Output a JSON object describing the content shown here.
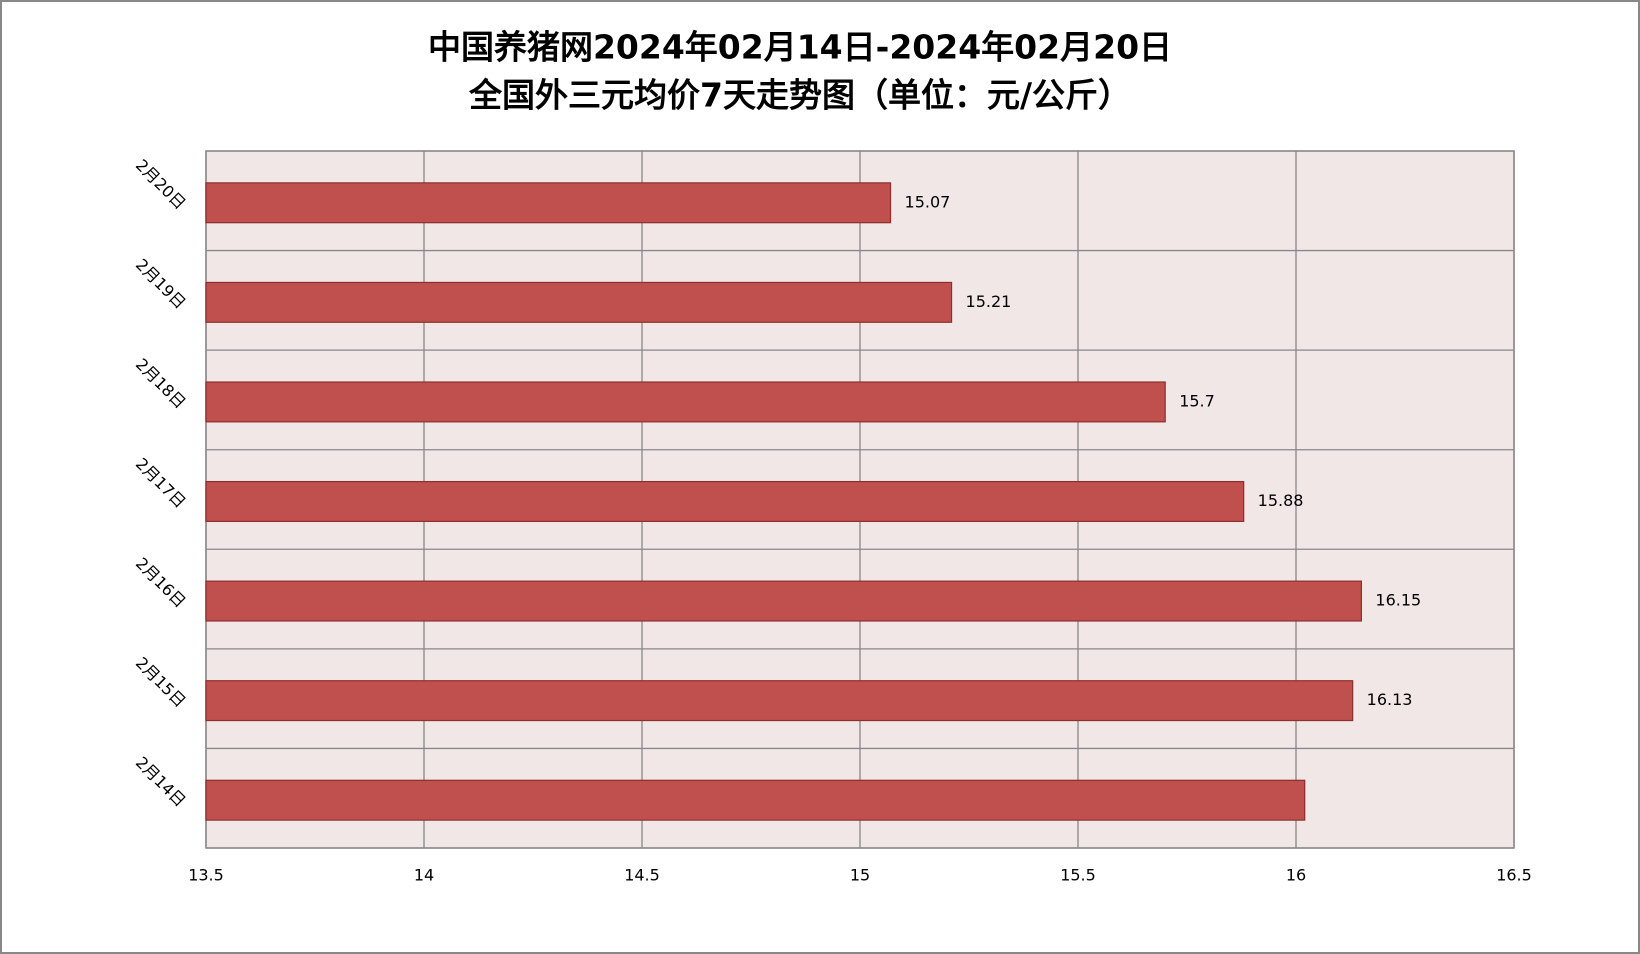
{
  "chart_data": {
    "type": "bar",
    "orientation": "horizontal",
    "title": "中国养猪网2024年02月14日-2024年02月20日",
    "subtitle": "全国外三元均价7天走势图（单位：元/公斤）",
    "categories": [
      "2月20日",
      "2月19日",
      "2月18日",
      "2月17日",
      "2月16日",
      "2月15日",
      "2月14日"
    ],
    "values": [
      15.07,
      15.21,
      15.7,
      15.88,
      16.15,
      16.13,
      16.02
    ],
    "value_labels": [
      "15.07",
      "15.21",
      "15.7",
      "15.88",
      "16.15",
      "16.13",
      null
    ],
    "color": "#c0504d",
    "xlim": [
      13.5,
      16.5
    ],
    "xticks": [
      13.5,
      14,
      14.5,
      15,
      15.5,
      16,
      16.5
    ],
    "grid": true
  }
}
